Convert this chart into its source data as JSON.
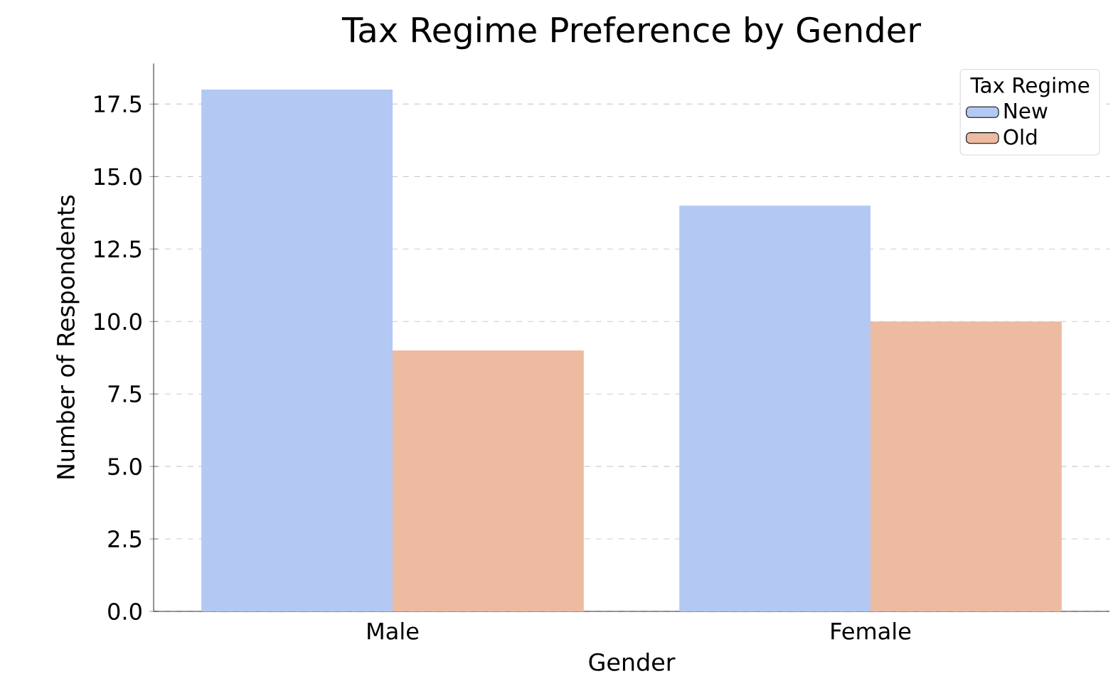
{
  "chart_data": {
    "type": "bar",
    "title": "Tax Regime Preference by Gender",
    "xlabel": "Gender",
    "ylabel": "Number of Respondents",
    "legend_title": "Tax Regime",
    "categories": [
      "Male",
      "Female"
    ],
    "series": [
      {
        "name": "New",
        "color": "#b3c8f3",
        "values": [
          18,
          14
        ]
      },
      {
        "name": "Old",
        "color": "#edbba1",
        "values": [
          9,
          10
        ]
      }
    ],
    "ylim": [
      0,
      18.9
    ],
    "yticks": [
      {
        "value": 0,
        "label": "0.0"
      },
      {
        "value": 2.5,
        "label": "2.5"
      },
      {
        "value": 5,
        "label": "5.0"
      },
      {
        "value": 7.5,
        "label": "7.5"
      },
      {
        "value": 10,
        "label": "10.0"
      },
      {
        "value": 12.5,
        "label": "12.5"
      },
      {
        "value": 15,
        "label": "15.0"
      },
      {
        "value": 17.5,
        "label": "17.5"
      }
    ],
    "grid": "y",
    "legend": "top right"
  }
}
